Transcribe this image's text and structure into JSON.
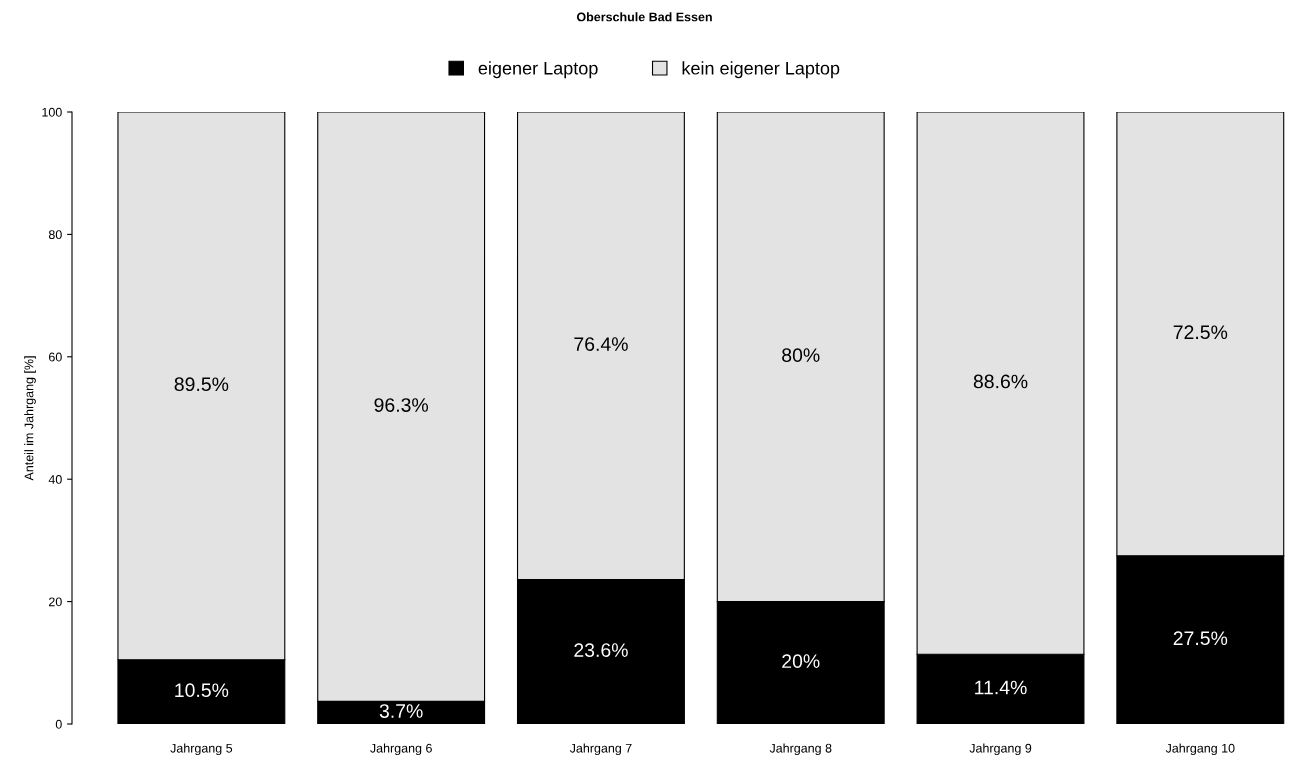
{
  "chart_data": {
    "type": "bar",
    "stacked": true,
    "title": "Oberschule Bad Essen",
    "ylabel": "Anteil im Jahrgang [%]",
    "categories": [
      "Jahrgang 5",
      "Jahrgang 6",
      "Jahrgang 7",
      "Jahrgang 8",
      "Jahrgang 9",
      "Jahrgang 10"
    ],
    "series": [
      {
        "name": "eigener Laptop",
        "color": "#000000",
        "values": [
          10.5,
          3.7,
          23.6,
          20,
          11.4,
          27.5
        ],
        "value_labels": [
          "10.5%",
          "3.7%",
          "23.6%",
          "20%",
          "11.4%",
          "27.5%"
        ]
      },
      {
        "name": "kein eigener Laptop",
        "color": "#e3e3e3",
        "values": [
          89.5,
          96.3,
          76.4,
          80,
          88.6,
          72.5
        ],
        "value_labels": [
          "89.5%",
          "96.3%",
          "76.4%",
          "80%",
          "88.6%",
          "72.5%"
        ]
      }
    ],
    "ylim": [
      0,
      100
    ],
    "yticks": [
      0,
      20,
      40,
      60,
      80,
      100
    ],
    "grid": false,
    "legend": "top"
  }
}
